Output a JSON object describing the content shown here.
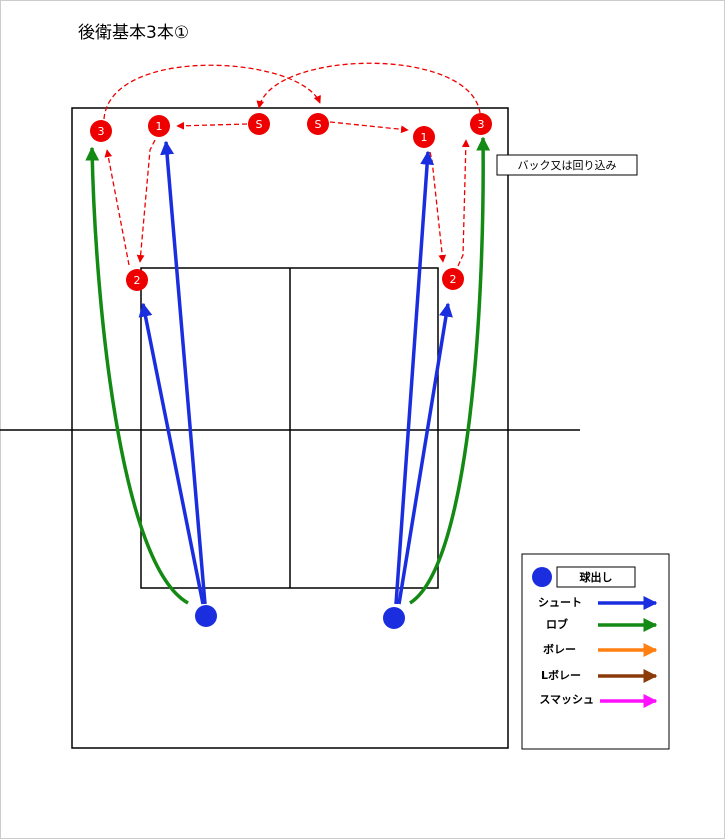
{
  "title": "後衛基本3本①",
  "nodes": [
    "3",
    "1",
    "S",
    "S",
    "1",
    "3",
    "2",
    "2"
  ],
  "note": "バック又は回り込み",
  "legend": [
    "球出し",
    "シュート",
    "ロブ",
    "ボレー",
    "Lボレー",
    "スマッシュ"
  ]
}
